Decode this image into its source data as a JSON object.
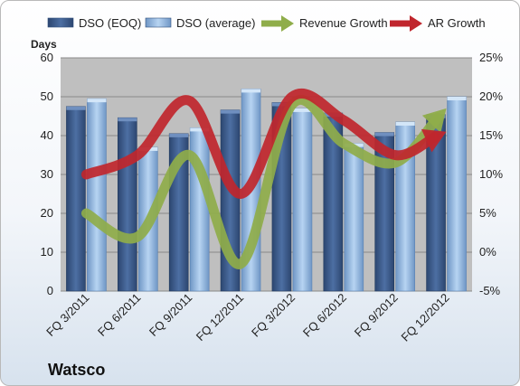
{
  "company": "Watsco",
  "chart_data": {
    "type": "bar",
    "categories": [
      "FQ 3/2011",
      "FQ 6/2011",
      "FQ 9/2011",
      "FQ 12/2011",
      "FQ 3/2012",
      "FQ 6/2012",
      "FQ 9/2012",
      "FQ 12/2012"
    ],
    "series": [
      {
        "name": "DSO (EOQ)",
        "kind": "bar",
        "axis": "left",
        "values": [
          47.5,
          44.6,
          40.5,
          46.6,
          48.5,
          45.8,
          40.8,
          45.4
        ]
      },
      {
        "name": "DSO (average)",
        "kind": "bar",
        "axis": "left",
        "values": [
          49.5,
          37.0,
          42.0,
          52.0,
          47.0,
          38.0,
          43.5,
          50.0
        ]
      },
      {
        "name": "Revenue Growth",
        "kind": "arrow-line",
        "axis": "right",
        "values": [
          5.0,
          2.0,
          12.5,
          -1.5,
          19.0,
          14.0,
          11.5,
          18.5
        ]
      },
      {
        "name": "AR Growth",
        "kind": "arrow-line",
        "axis": "right",
        "values": [
          10.0,
          12.5,
          19.5,
          7.5,
          20.0,
          17.0,
          12.5,
          15.5
        ]
      }
    ],
    "ylabel": "Days",
    "ylim": [
      0,
      60
    ],
    "yticks": [
      "0",
      "10",
      "20",
      "30",
      "40",
      "50",
      "60"
    ],
    "y2lim": [
      -5,
      25
    ],
    "y2ticks": [
      "-5%",
      "0%",
      "5%",
      "10%",
      "15%",
      "20%",
      "25%"
    ],
    "grid": true,
    "legend_position": "top",
    "colors": {
      "dso_eoq": "#3d5c8c",
      "dso_avg": "#a9c8ea",
      "revenue_growth": "#8fad4a",
      "ar_growth": "#c0262d",
      "plot_bg": "#bfbfbf"
    }
  }
}
